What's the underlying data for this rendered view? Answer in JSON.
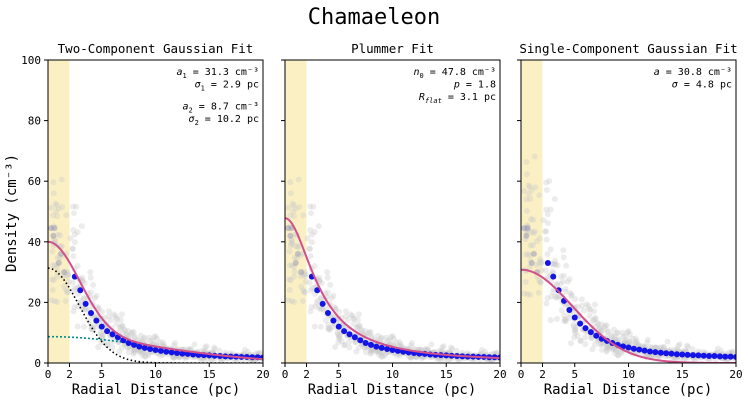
{
  "figure": {
    "title": "Chamaeleon",
    "xlabel": "Radial Distance (pc)",
    "ylabel": "Density (cm⁻³)"
  },
  "chart_data": [
    {
      "type": "scatter",
      "title": "Two-Component Gaussian Fit",
      "xlim": [
        0,
        20
      ],
      "ylim": [
        0,
        100
      ],
      "xticks": [
        0,
        2,
        5,
        10,
        15,
        20
      ],
      "yticks": [
        0,
        20,
        40,
        60,
        80,
        100
      ],
      "shaded_band": [
        0,
        2
      ],
      "fit_model": "two_gaussian",
      "params": {
        "a1": 31.3,
        "s1": 2.9,
        "a2": 8.7,
        "s2": 10.2
      },
      "annotations": [
        {
          "pre": "a",
          "sub": "1",
          "post": " = 31.3 cm⁻³"
        },
        {
          "pre": "σ",
          "sub": "1",
          "post": " = 2.9 pc"
        },
        {
          "pre": "a",
          "sub": "2",
          "post": " = 8.7 cm⁻³"
        },
        {
          "pre": "σ",
          "sub": "2",
          "post": " = 10.2 pc"
        }
      ],
      "binned_points": [
        {
          "x": 2.5,
          "y": 28.5
        },
        {
          "x": 3.0,
          "y": 24.0
        },
        {
          "x": 3.5,
          "y": 19.5
        },
        {
          "x": 4.0,
          "y": 16.5
        },
        {
          "x": 4.5,
          "y": 14.0
        },
        {
          "x": 5.0,
          "y": 12.0
        },
        {
          "x": 5.5,
          "y": 10.5
        },
        {
          "x": 6.0,
          "y": 9.5
        },
        {
          "x": 6.5,
          "y": 8.5
        },
        {
          "x": 7.0,
          "y": 7.5
        },
        {
          "x": 7.5,
          "y": 6.6
        },
        {
          "x": 8.0,
          "y": 6.0
        },
        {
          "x": 8.5,
          "y": 5.4
        },
        {
          "x": 9.0,
          "y": 5.0
        },
        {
          "x": 9.5,
          "y": 4.6
        },
        {
          "x": 10.0,
          "y": 4.3
        },
        {
          "x": 10.5,
          "y": 4.0
        },
        {
          "x": 11.0,
          "y": 3.7
        },
        {
          "x": 11.5,
          "y": 3.5
        },
        {
          "x": 12.0,
          "y": 3.3
        },
        {
          "x": 12.5,
          "y": 3.1
        },
        {
          "x": 13.0,
          "y": 3.0
        },
        {
          "x": 13.5,
          "y": 2.8
        },
        {
          "x": 14.0,
          "y": 2.7
        },
        {
          "x": 14.5,
          "y": 2.6
        },
        {
          "x": 15.0,
          "y": 2.5
        },
        {
          "x": 15.5,
          "y": 2.4
        },
        {
          "x": 16.0,
          "y": 2.3
        },
        {
          "x": 16.5,
          "y": 2.2
        },
        {
          "x": 17.0,
          "y": 2.1
        },
        {
          "x": 17.5,
          "y": 2.1
        },
        {
          "x": 18.0,
          "y": 2.0
        },
        {
          "x": 18.5,
          "y": 2.0
        },
        {
          "x": 19.0,
          "y": 1.9
        },
        {
          "x": 19.5,
          "y": 1.9
        },
        {
          "x": 20.0,
          "y": 1.8
        }
      ]
    },
    {
      "type": "scatter",
      "title": "Plummer Fit",
      "xlim": [
        0,
        20
      ],
      "ylim": [
        0,
        100
      ],
      "xticks": [
        0,
        2,
        5,
        10,
        15,
        20
      ],
      "yticks": [
        0,
        20,
        40,
        60,
        80,
        100
      ],
      "shaded_band": [
        0,
        2
      ],
      "fit_model": "plummer",
      "params": {
        "n0": 47.8,
        "p": 1.8,
        "rflat": 3.1
      },
      "annotations": [
        {
          "pre": "n",
          "sub": "0",
          "post": " = 47.8 cm⁻³"
        },
        {
          "pre": "p",
          "sub": "",
          "post": " = 1.8"
        },
        {
          "pre": "R",
          "sub": "flat",
          "post": " = 3.1 pc"
        }
      ],
      "binned_points": [
        {
          "x": 2.5,
          "y": 28.5
        },
        {
          "x": 3.0,
          "y": 24.0
        },
        {
          "x": 3.5,
          "y": 19.5
        },
        {
          "x": 4.0,
          "y": 16.5
        },
        {
          "x": 4.5,
          "y": 14.0
        },
        {
          "x": 5.0,
          "y": 12.0
        },
        {
          "x": 5.5,
          "y": 10.5
        },
        {
          "x": 6.0,
          "y": 9.5
        },
        {
          "x": 6.5,
          "y": 8.5
        },
        {
          "x": 7.0,
          "y": 7.5
        },
        {
          "x": 7.5,
          "y": 6.6
        },
        {
          "x": 8.0,
          "y": 6.0
        },
        {
          "x": 8.5,
          "y": 5.4
        },
        {
          "x": 9.0,
          "y": 5.0
        },
        {
          "x": 9.5,
          "y": 4.6
        },
        {
          "x": 10.0,
          "y": 4.3
        },
        {
          "x": 10.5,
          "y": 4.0
        },
        {
          "x": 11.0,
          "y": 3.7
        },
        {
          "x": 11.5,
          "y": 3.5
        },
        {
          "x": 12.0,
          "y": 3.3
        },
        {
          "x": 12.5,
          "y": 3.1
        },
        {
          "x": 13.0,
          "y": 3.0
        },
        {
          "x": 13.5,
          "y": 2.8
        },
        {
          "x": 14.0,
          "y": 2.7
        },
        {
          "x": 14.5,
          "y": 2.6
        },
        {
          "x": 15.0,
          "y": 2.5
        },
        {
          "x": 15.5,
          "y": 2.4
        },
        {
          "x": 16.0,
          "y": 2.3
        },
        {
          "x": 16.5,
          "y": 2.2
        },
        {
          "x": 17.0,
          "y": 2.1
        },
        {
          "x": 17.5,
          "y": 2.1
        },
        {
          "x": 18.0,
          "y": 2.0
        },
        {
          "x": 18.5,
          "y": 2.0
        },
        {
          "x": 19.0,
          "y": 1.9
        },
        {
          "x": 19.5,
          "y": 1.9
        },
        {
          "x": 20.0,
          "y": 1.8
        }
      ]
    },
    {
      "type": "scatter",
      "title": "Single-Component Gaussian Fit",
      "xlim": [
        0,
        20
      ],
      "ylim": [
        0,
        100
      ],
      "xticks": [
        0,
        2,
        5,
        10,
        15,
        20
      ],
      "yticks": [
        0,
        20,
        40,
        60,
        80,
        100
      ],
      "shaded_band": [
        0,
        2
      ],
      "fit_model": "single_gaussian",
      "params": {
        "a": 30.8,
        "s": 4.8
      },
      "annotations": [
        {
          "pre": "a",
          "sub": "",
          "post": " = 30.8 cm⁻³"
        },
        {
          "pre": "σ",
          "sub": "",
          "post": " = 4.8 pc"
        }
      ],
      "binned_points": [
        {
          "x": 2.5,
          "y": 33.0
        },
        {
          "x": 3.0,
          "y": 28.5
        },
        {
          "x": 3.5,
          "y": 24.0
        },
        {
          "x": 4.0,
          "y": 20.5
        },
        {
          "x": 4.5,
          "y": 17.5
        },
        {
          "x": 5.0,
          "y": 15.0
        },
        {
          "x": 5.5,
          "y": 13.0
        },
        {
          "x": 6.0,
          "y": 11.5
        },
        {
          "x": 6.5,
          "y": 10.2
        },
        {
          "x": 7.0,
          "y": 9.0
        },
        {
          "x": 7.5,
          "y": 8.0
        },
        {
          "x": 8.0,
          "y": 7.3
        },
        {
          "x": 8.5,
          "y": 6.6
        },
        {
          "x": 9.0,
          "y": 6.0
        },
        {
          "x": 9.5,
          "y": 5.5
        },
        {
          "x": 10.0,
          "y": 5.1
        },
        {
          "x": 10.5,
          "y": 4.7
        },
        {
          "x": 11.0,
          "y": 4.4
        },
        {
          "x": 11.5,
          "y": 4.1
        },
        {
          "x": 12.0,
          "y": 3.8
        },
        {
          "x": 12.5,
          "y": 3.6
        },
        {
          "x": 13.0,
          "y": 3.4
        },
        {
          "x": 13.5,
          "y": 3.2
        },
        {
          "x": 14.0,
          "y": 3.1
        },
        {
          "x": 14.5,
          "y": 2.9
        },
        {
          "x": 15.0,
          "y": 2.8
        },
        {
          "x": 15.5,
          "y": 2.7
        },
        {
          "x": 16.0,
          "y": 2.6
        },
        {
          "x": 16.5,
          "y": 2.5
        },
        {
          "x": 17.0,
          "y": 2.4
        },
        {
          "x": 17.5,
          "y": 2.3
        },
        {
          "x": 18.0,
          "y": 2.3
        },
        {
          "x": 18.5,
          "y": 2.2
        },
        {
          "x": 19.0,
          "y": 2.1
        },
        {
          "x": 19.5,
          "y": 2.1
        },
        {
          "x": 20.0,
          "y": 2.0
        }
      ]
    }
  ],
  "colors": {
    "band": "#fbf0c4",
    "scatter": "#c8c8c8",
    "binned": "#1414e6",
    "fit": "#d2508c",
    "comp1": "#000000",
    "comp2": "#008c8c"
  }
}
